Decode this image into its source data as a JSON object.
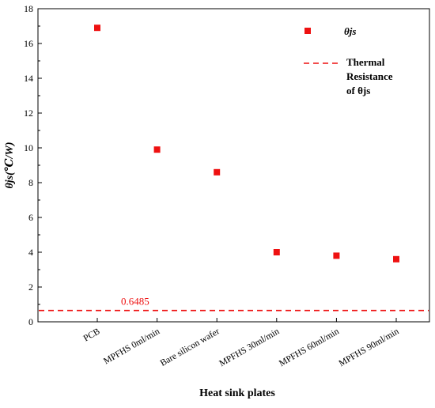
{
  "chart_data": {
    "type": "scatter",
    "categories": [
      "PCB",
      "MPFHS 0ml/min",
      "Bare silicon wafer",
      "MPFHS 30ml/min",
      "MPFHS 60ml/min",
      "MPFHS 90ml/min"
    ],
    "series": [
      {
        "name": "θjs",
        "values": [
          16.9,
          9.9,
          8.6,
          4.0,
          3.8,
          3.6
        ],
        "color": "#ee1111",
        "marker": "square"
      }
    ],
    "reference_line": {
      "value": 0.6485,
      "label": "0.6485",
      "legend_lines": [
        "Thermal",
        "Resistance",
        "of θjs"
      ],
      "style": "dashed",
      "color": "#ee1111"
    },
    "xlabel": "Heat sink plates",
    "ylabel": "θjs(℃/W)",
    "ylim": [
      0,
      18
    ],
    "yticks": [
      0,
      2,
      4,
      6,
      8,
      10,
      12,
      14,
      16,
      18
    ],
    "grid": false,
    "legend_position": "top-right"
  }
}
